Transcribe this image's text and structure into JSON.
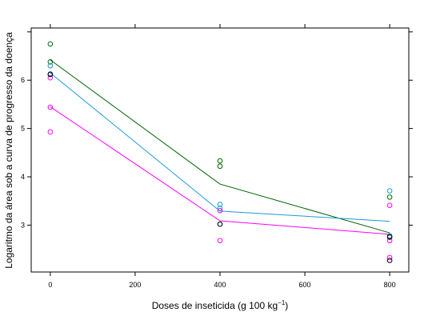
{
  "chart_data": {
    "type": "scatter",
    "xlabel": "Doses de inseticida (g 100 kg",
    "xlabel_sup": "−1",
    "xlabel_end": ")",
    "ylabel": "Logaritmo da área sob a curva de progresso da doença",
    "xlim": [
      -45,
      845
    ],
    "ylim": [
      2.03,
      7.08
    ],
    "x_ticks": [
      0,
      200,
      400,
      600,
      800
    ],
    "x_tick_labels": [
      "0",
      "200",
      "400",
      "600",
      "800"
    ],
    "y_ticks": [
      2,
      3,
      4,
      5,
      6,
      7
    ],
    "y_tick_labels": [
      "",
      "3",
      "4",
      "5",
      "6",
      ""
    ],
    "grid": false,
    "series": [
      {
        "color": "#006400",
        "points": [
          {
            "x": 0,
            "y": 6.75
          },
          {
            "x": 0,
            "y": 6.38
          },
          {
            "x": 0,
            "y": 6.12
          },
          {
            "x": 400,
            "y": 4.33
          },
          {
            "x": 400,
            "y": 4.22
          },
          {
            "x": 800,
            "y": 3.58
          },
          {
            "x": 800,
            "y": 2.75
          }
        ],
        "line": [
          [
            0,
            6.42
          ],
          [
            400,
            3.85
          ],
          [
            800,
            2.84
          ]
        ]
      },
      {
        "color": "#1b9bd8",
        "points": [
          {
            "x": 0,
            "y": 6.3
          },
          {
            "x": 0,
            "y": 6.13
          },
          {
            "x": 400,
            "y": 3.43
          },
          {
            "x": 400,
            "y": 3.35
          },
          {
            "x": 400,
            "y": 3.02
          },
          {
            "x": 800,
            "y": 3.71
          },
          {
            "x": 800,
            "y": 2.78
          }
        ],
        "line": [
          [
            0,
            6.15
          ],
          [
            400,
            3.29
          ],
          [
            800,
            3.08
          ]
        ]
      },
      {
        "color": "#ff00ff",
        "points": [
          {
            "x": 0,
            "y": 6.05
          },
          {
            "x": 0,
            "y": 5.44
          },
          {
            "x": 0,
            "y": 4.93
          },
          {
            "x": 400,
            "y": 3.3
          },
          {
            "x": 400,
            "y": 2.68
          },
          {
            "x": 800,
            "y": 3.41
          },
          {
            "x": 800,
            "y": 2.68
          },
          {
            "x": 800,
            "y": 2.33
          }
        ],
        "line": [
          [
            0,
            5.45
          ],
          [
            400,
            3.09
          ],
          [
            800,
            2.81
          ]
        ]
      },
      {
        "color": "#000000",
        "points": [
          {
            "x": 0,
            "y": 6.12
          },
          {
            "x": 400,
            "y": 3.02
          },
          {
            "x": 800,
            "y": 2.76
          },
          {
            "x": 800,
            "y": 2.27
          }
        ],
        "line": []
      }
    ]
  }
}
